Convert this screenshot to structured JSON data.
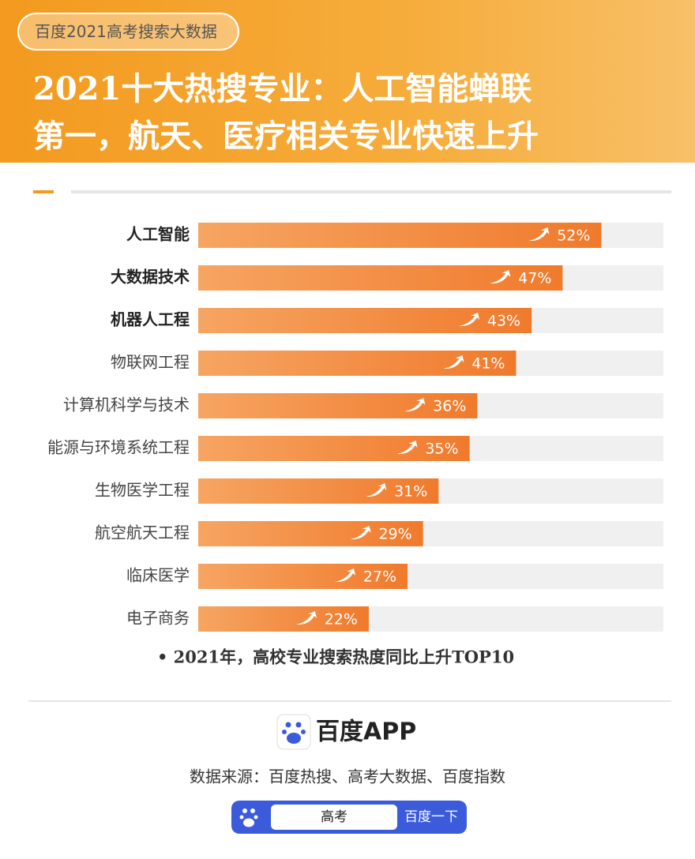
{
  "header": {
    "tag": "百度2021高考搜索大数据",
    "title_lines": [
      "2021十大热搜专业：人工智能蝉联",
      "第一，航天、医疗相关专业快速上升"
    ]
  },
  "chart_data": {
    "type": "bar",
    "orientation": "horizontal",
    "categories": [
      "人工智能",
      "大数据技术",
      "机器人工程",
      "物联网工程",
      "计算机科学与技术",
      "能源与环境系统工程",
      "生物医学工程",
      "航空航天工程",
      "临床医学",
      "电子商务"
    ],
    "values": [
      52,
      47,
      43,
      41,
      36,
      35,
      31,
      29,
      27,
      22
    ],
    "value_labels": [
      "52%",
      "47%",
      "43%",
      "41%",
      "36%",
      "35%",
      "31%",
      "29%",
      "27%",
      "22%"
    ],
    "xlim": [
      0,
      60
    ],
    "color": "#f07a2c",
    "note": "• 2021年，高校专业搜索热度同比上升TOP10"
  },
  "footer": {
    "brand": "百度APP",
    "source": "数据来源：百度热搜、高考大数据、百度指数",
    "search_query": "高考",
    "search_button": "百度一下"
  }
}
